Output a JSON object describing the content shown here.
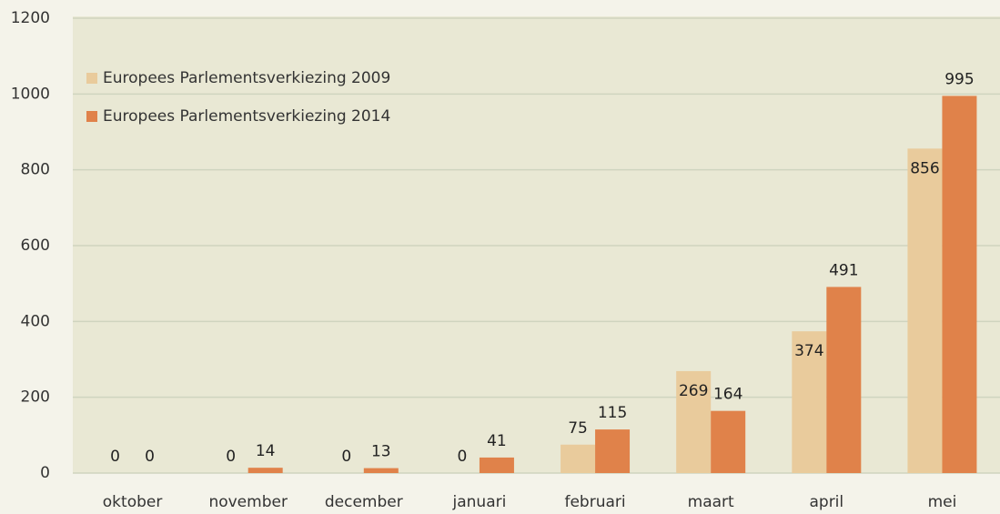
{
  "chart_data": {
    "type": "bar",
    "categories": [
      "oktober",
      "november",
      "december",
      "januari",
      "februari",
      "maart",
      "april",
      "mei"
    ],
    "series": [
      {
        "name": "Europees Parlementsverkiezing 2009",
        "color": "#e9cb9c",
        "values": [
          0,
          0,
          0,
          0,
          75,
          269,
          374,
          856
        ]
      },
      {
        "name": "Europees Parlementsverkiezing 2014",
        "color": "#e0824a",
        "values": [
          0,
          14,
          13,
          41,
          115,
          164,
          491,
          995
        ]
      }
    ],
    "ylim": [
      0,
      1200
    ],
    "yticks": [
      0,
      200,
      400,
      600,
      800,
      1000,
      1200
    ],
    "grid": true,
    "legend": "upper left"
  }
}
